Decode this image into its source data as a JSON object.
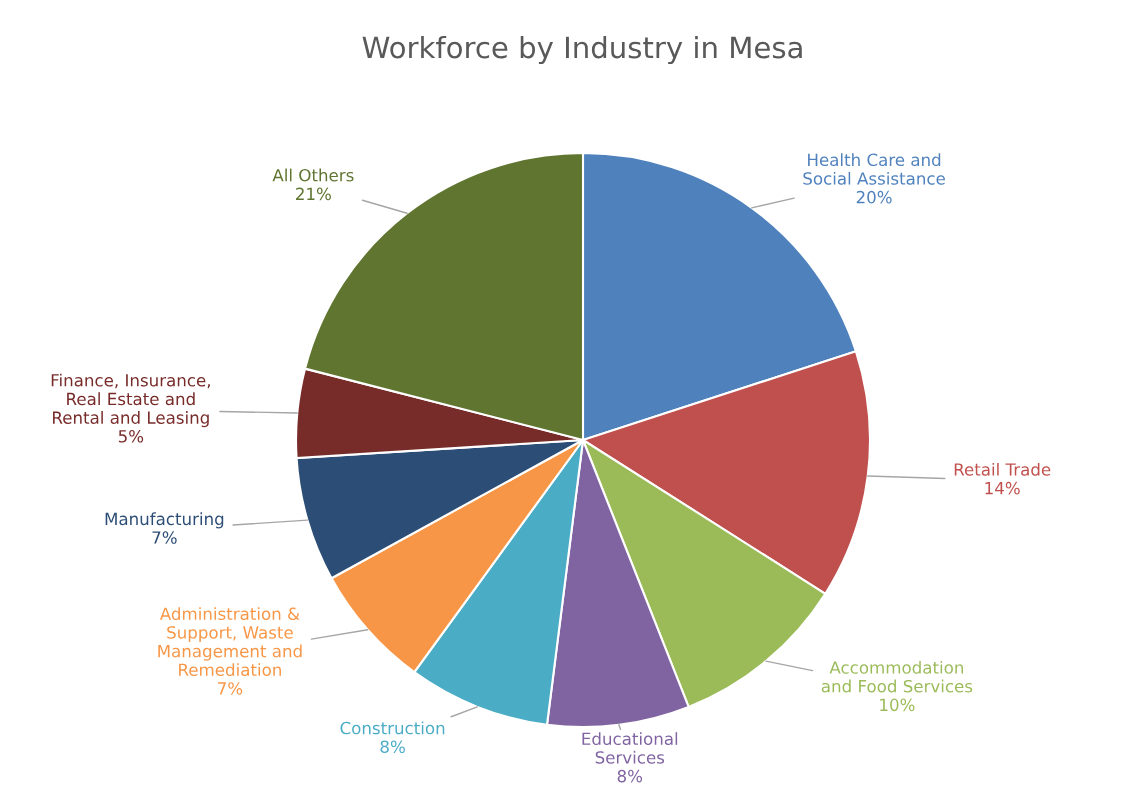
{
  "chart_data": {
    "type": "pie",
    "title": "Workforce by Industry in Mesa",
    "categories": [
      "Health Care and\nSocial Assistance",
      "Retail Trade",
      "Accommodation\nand Food Services",
      "Educational\nServices",
      "Construction",
      "Administration &\nSupport, Waste\nManagement and\nRemediation",
      "Manufacturing",
      "Finance, Insurance,\nReal Estate and\nRental and Leasing",
      "All Others"
    ],
    "values": [
      20,
      14,
      10,
      8,
      8,
      7,
      7,
      5,
      21
    ],
    "value_labels": [
      "20%",
      "14%",
      "10%",
      "8%",
      "8%",
      "7%",
      "7%",
      "5%",
      "21%"
    ],
    "colors": [
      "#4f81bd",
      "#c0504d",
      "#9bbb59",
      "#8064a2",
      "#4bacc6",
      "#f79646",
      "#2c4d75",
      "#772c2a",
      "#5f7530"
    ],
    "legend": false
  }
}
